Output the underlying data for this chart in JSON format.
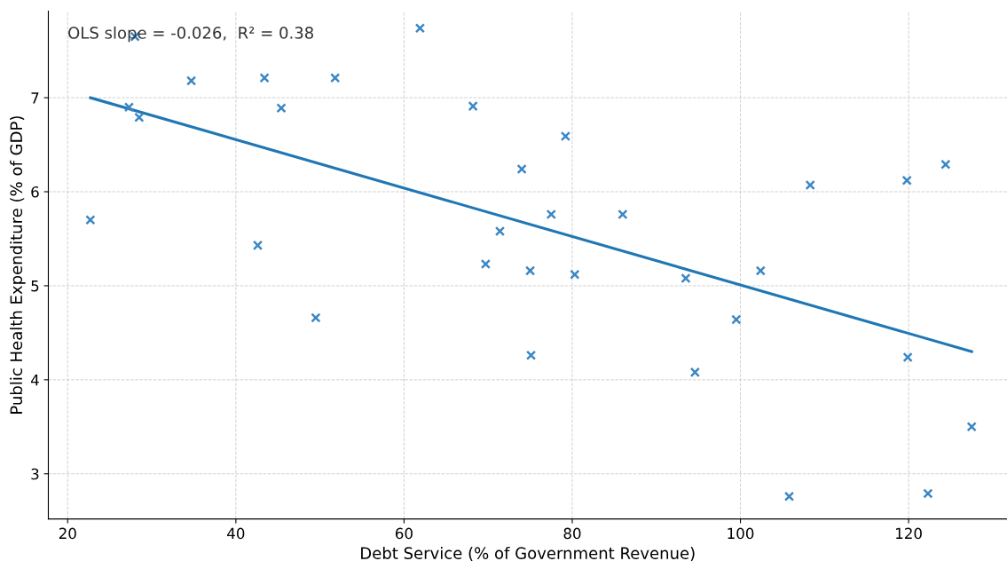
{
  "chart_data": {
    "type": "scatter",
    "xlabel": "Debt Service (% of Government Revenue)",
    "ylabel": "Public Health Expenditure (% of GDP)",
    "annotations": [
      "OLS slope = -0.026,  R² = 0.38"
    ],
    "xlim": [
      17.7,
      131.7
    ],
    "ylim": [
      2.52,
      7.92
    ],
    "xticks": [
      20,
      40,
      60,
      80,
      100,
      120
    ],
    "yticks": [
      3,
      4,
      5,
      6,
      7
    ],
    "grid": true,
    "series": [
      {
        "marker": "cross",
        "color": "#3a87c4",
        "x": [
          22.7,
          27.3,
          28.0,
          28.5,
          34.7,
          42.6,
          43.4,
          45.4,
          49.5,
          51.8,
          61.9,
          68.2,
          69.7,
          71.4,
          74.0,
          75.0,
          75.1,
          77.5,
          79.2,
          80.3,
          86.0,
          93.5,
          94.6,
          99.5,
          102.4,
          108.3,
          105.8,
          119.8,
          119.9,
          122.3,
          124.4,
          127.5
        ],
        "values": [
          5.7,
          6.9,
          7.65,
          6.79,
          7.18,
          5.43,
          7.21,
          6.89,
          4.66,
          7.21,
          7.74,
          6.91,
          5.23,
          5.58,
          6.24,
          5.16,
          4.26,
          5.76,
          6.59,
          5.12,
          5.76,
          5.08,
          4.08,
          4.64,
          5.16,
          6.07,
          2.76,
          6.12,
          4.24,
          2.79,
          6.29,
          3.5
        ]
      },
      {
        "type": "line",
        "color": "#1f77b4",
        "x": [
          22.7,
          127.5
        ],
        "values": [
          7.0,
          4.3
        ]
      }
    ]
  }
}
